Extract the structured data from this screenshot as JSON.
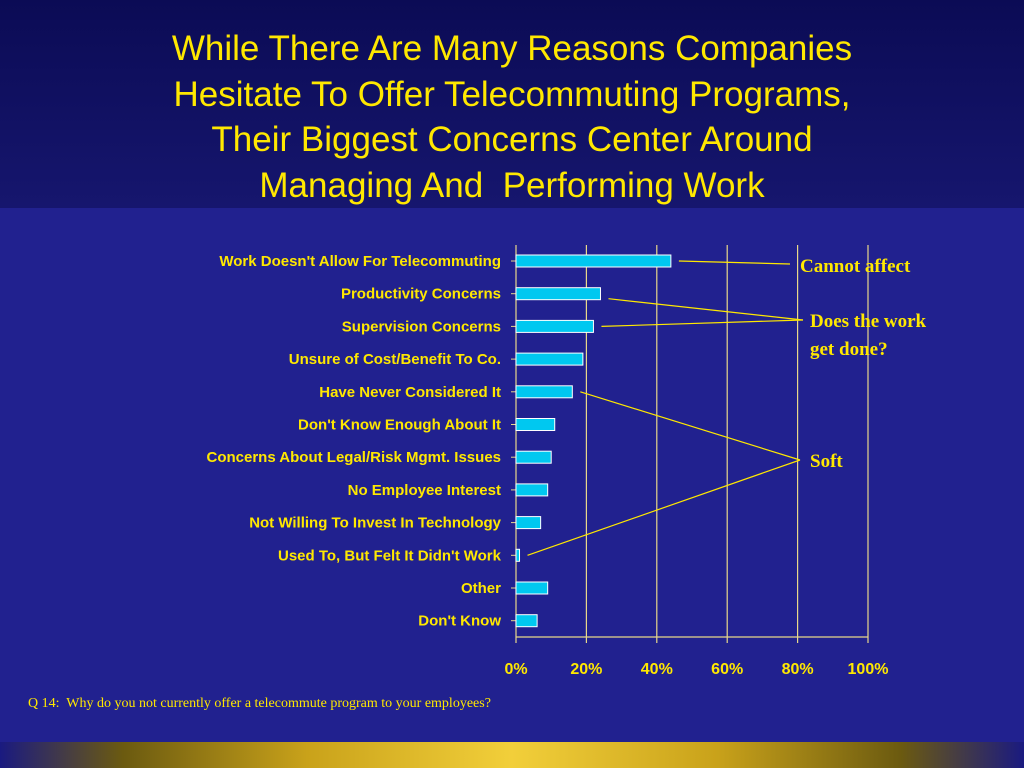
{
  "title_lines": [
    "While There Are Many Reasons Companies",
    "Hesitate To Offer Telecommuting Programs,",
    "Their Biggest Concerns Center Around",
    "Managing And  Performing Work"
  ],
  "footnote": "Q 14:  Why do you not currently offer a telecommute program to your employees?",
  "colors": {
    "background": "#21218f",
    "title_text": "#ffe800",
    "bar_fill": "#00c8f0",
    "bar_stroke": "#ffffff",
    "gridline": "#e8d88a",
    "annotation_line": "#ffe800"
  },
  "chart_data": {
    "type": "bar",
    "orientation": "horizontal",
    "categories": [
      "Work Doesn't Allow For Telecommuting",
      "Productivity Concerns",
      "Supervision Concerns",
      "Unsure of Cost/Benefit To Co.",
      "Have Never Considered It",
      "Don't Know Enough About It",
      "Concerns About Legal/Risk Mgmt. Issues",
      "No Employee Interest",
      "Not Willing To Invest In Technology",
      "Used To, But Felt It Didn't Work",
      "Other",
      "Don't Know"
    ],
    "values": [
      44,
      24,
      22,
      19,
      16,
      11,
      10,
      9,
      7,
      1,
      9,
      6
    ],
    "xlim": [
      0,
      100
    ],
    "xticks": [
      0,
      20,
      40,
      60,
      80,
      100
    ],
    "xtick_labels": [
      "0%",
      "20%",
      "40%",
      "60%",
      "80%",
      "100%"
    ],
    "grid": "vertical",
    "annotations": [
      {
        "text_lines": [
          "Cannot affect"
        ],
        "targets": [
          0
        ]
      },
      {
        "text_lines": [
          "Does the work",
          "get done?"
        ],
        "targets": [
          1,
          2
        ]
      },
      {
        "text_lines": [
          "Soft"
        ],
        "targets": [
          4,
          9
        ]
      }
    ]
  }
}
